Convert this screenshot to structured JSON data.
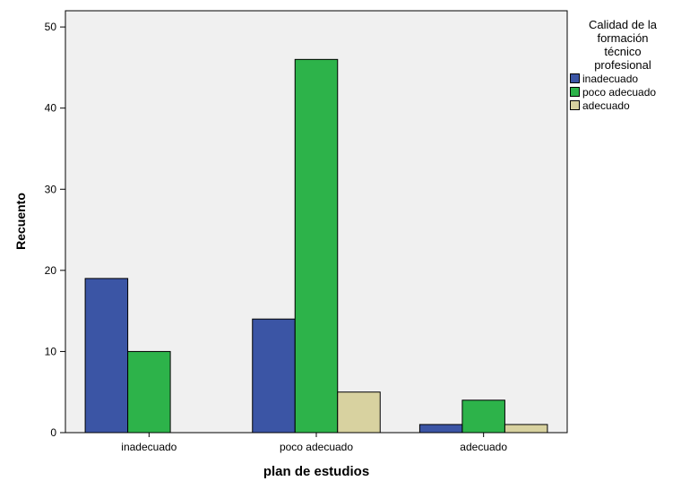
{
  "chart_data": {
    "type": "bar",
    "xlabel": "plan de estudios",
    "ylabel": "Recuento",
    "categories": [
      "inadecuado",
      "poco adecuado",
      "adecuado"
    ],
    "series": [
      {
        "name": "inadecuado",
        "values": [
          19,
          14,
          1
        ],
        "color": "#3b55a5"
      },
      {
        "name": "poco adecuado",
        "values": [
          10,
          46,
          4
        ],
        "color": "#2db34a"
      },
      {
        "name": "adecuado",
        "values": [
          0,
          5,
          1
        ],
        "color": "#d8d2a0"
      }
    ],
    "ylim": [
      0,
      52
    ],
    "yticks": [
      0,
      10,
      20,
      30,
      40,
      50
    ],
    "grid": false,
    "plot_background": "#f0f0f0",
    "legend_title": "Calidad de la\nformación\ntécnico\nprofesional",
    "legend_position": "right"
  }
}
